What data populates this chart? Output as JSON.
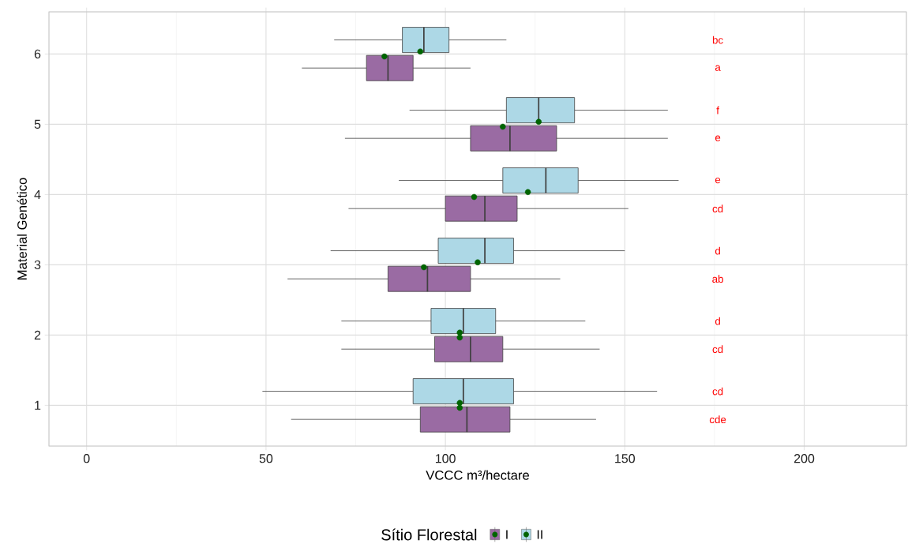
{
  "chart_data": {
    "type": "box",
    "orientation": "horizontal",
    "xlabel": "VCCC m³/hectare",
    "ylabel": "Material Genético",
    "legend_title": "Sítio Florestal",
    "legend": "bottom",
    "grid": true,
    "categories": [
      "6",
      "5",
      "4",
      "3",
      "2",
      "1"
    ],
    "xlim": [
      -10.5,
      228.5
    ],
    "xticks": [
      0,
      50,
      100,
      150,
      200
    ],
    "series": [
      {
        "name": "I",
        "color": "#9a6ba3",
        "value_labels": [
          "a",
          "e",
          "cd",
          "ab",
          "cd",
          "cde"
        ],
        "boxes": [
          {
            "low": 60,
            "q1": 78,
            "median": 84,
            "q3": 91,
            "high": 107,
            "mean": 83
          },
          {
            "low": 72,
            "q1": 107,
            "median": 118,
            "q3": 131,
            "high": 162,
            "mean": 116
          },
          {
            "low": 73,
            "q1": 100,
            "median": 111,
            "q3": 120,
            "high": 151,
            "mean": 108
          },
          {
            "low": 56,
            "q1": 84,
            "median": 95,
            "q3": 107,
            "high": 132,
            "mean": 94
          },
          {
            "low": 71,
            "q1": 97,
            "median": 107,
            "q3": 116,
            "high": 143,
            "mean": 104
          },
          {
            "low": 57,
            "q1": 93,
            "median": 106,
            "q3": 118,
            "high": 142,
            "mean": 104
          }
        ]
      },
      {
        "name": "II",
        "color": "#add8e6",
        "value_labels": [
          "bc",
          "f",
          "e",
          "d",
          "d",
          "cd"
        ],
        "boxes": [
          {
            "low": 69,
            "q1": 88,
            "median": 94,
            "q3": 101,
            "high": 117,
            "mean": 93
          },
          {
            "low": 90,
            "q1": 117,
            "median": 126,
            "q3": 136,
            "high": 162,
            "mean": 126
          },
          {
            "low": 87,
            "q1": 116,
            "median": 128,
            "q3": 137,
            "high": 165,
            "mean": 123
          },
          {
            "low": 68,
            "q1": 98,
            "median": 111,
            "q3": 119,
            "high": 150,
            "mean": 109
          },
          {
            "low": 71,
            "q1": 96,
            "median": 105,
            "q3": 114,
            "high": 139,
            "mean": 104
          },
          {
            "low": 49,
            "q1": 91,
            "median": 105,
            "q3": 119,
            "high": 159,
            "mean": 104
          }
        ]
      }
    ]
  }
}
